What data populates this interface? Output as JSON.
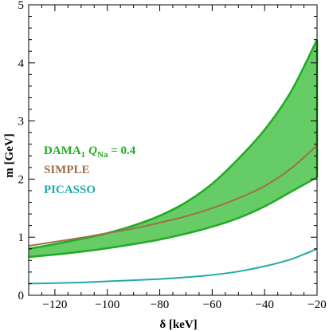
{
  "chart_data": {
    "type": "area",
    "x_label": "δ [keV]",
    "y_label": "m [GeV]",
    "xlim": [
      -130,
      -20
    ],
    "ylim": [
      0,
      5
    ],
    "x_ticks": [
      -120,
      -100,
      -80,
      -60,
      -40,
      -20
    ],
    "x_tick_labels": [
      "−120",
      "−100",
      "−80",
      "−60",
      "−40",
      "−20"
    ],
    "y_ticks": [
      0,
      1,
      2,
      3,
      4,
      5
    ],
    "y_tick_labels": [
      "0",
      "1",
      "2",
      "3",
      "4",
      "5"
    ],
    "grid": false,
    "legend_position": "left",
    "colors": {
      "dama_fill": "#66cc66",
      "dama_line": "#22aa22",
      "simple": "#a0704a",
      "picasso": "#22aaaa",
      "dama_label": "#22aa22",
      "simple_label": "#a0704a",
      "picasso_label": "#22aaaa"
    },
    "series": [
      {
        "name": "DAMA₁ Q_Na = 0.4",
        "type": "band",
        "x": [
          -130,
          -120,
          -110,
          -100,
          -90,
          -80,
          -70,
          -60,
          -50,
          -40,
          -30,
          -20
        ],
        "upper": [
          0.8,
          0.88,
          0.97,
          1.07,
          1.2,
          1.37,
          1.6,
          1.92,
          2.35,
          2.85,
          3.5,
          4.4
        ],
        "lower": [
          0.66,
          0.7,
          0.75,
          0.81,
          0.88,
          0.96,
          1.06,
          1.18,
          1.33,
          1.53,
          1.78,
          2.03
        ]
      },
      {
        "name": "SIMPLE",
        "type": "line",
        "x": [
          -130,
          -120,
          -110,
          -100,
          -90,
          -80,
          -70,
          -60,
          -50,
          -40,
          -30,
          -20
        ],
        "y": [
          0.85,
          0.92,
          0.99,
          1.07,
          1.15,
          1.25,
          1.36,
          1.5,
          1.67,
          1.88,
          2.18,
          2.58
        ]
      },
      {
        "name": "PICASSO",
        "type": "line",
        "x": [
          -130,
          -120,
          -110,
          -100,
          -90,
          -80,
          -70,
          -60,
          -50,
          -40,
          -30,
          -20
        ],
        "y": [
          0.2,
          0.21,
          0.22,
          0.24,
          0.26,
          0.28,
          0.31,
          0.35,
          0.41,
          0.5,
          0.62,
          0.8
        ]
      }
    ],
    "legend": {
      "dama_prefix": "DAMA",
      "dama_sub": "1",
      "dama_q": "Q",
      "dama_q_sub": "Na",
      "dama_value": " = 0.4",
      "simple": "SIMPLE",
      "picasso": "PICASSO"
    }
  }
}
